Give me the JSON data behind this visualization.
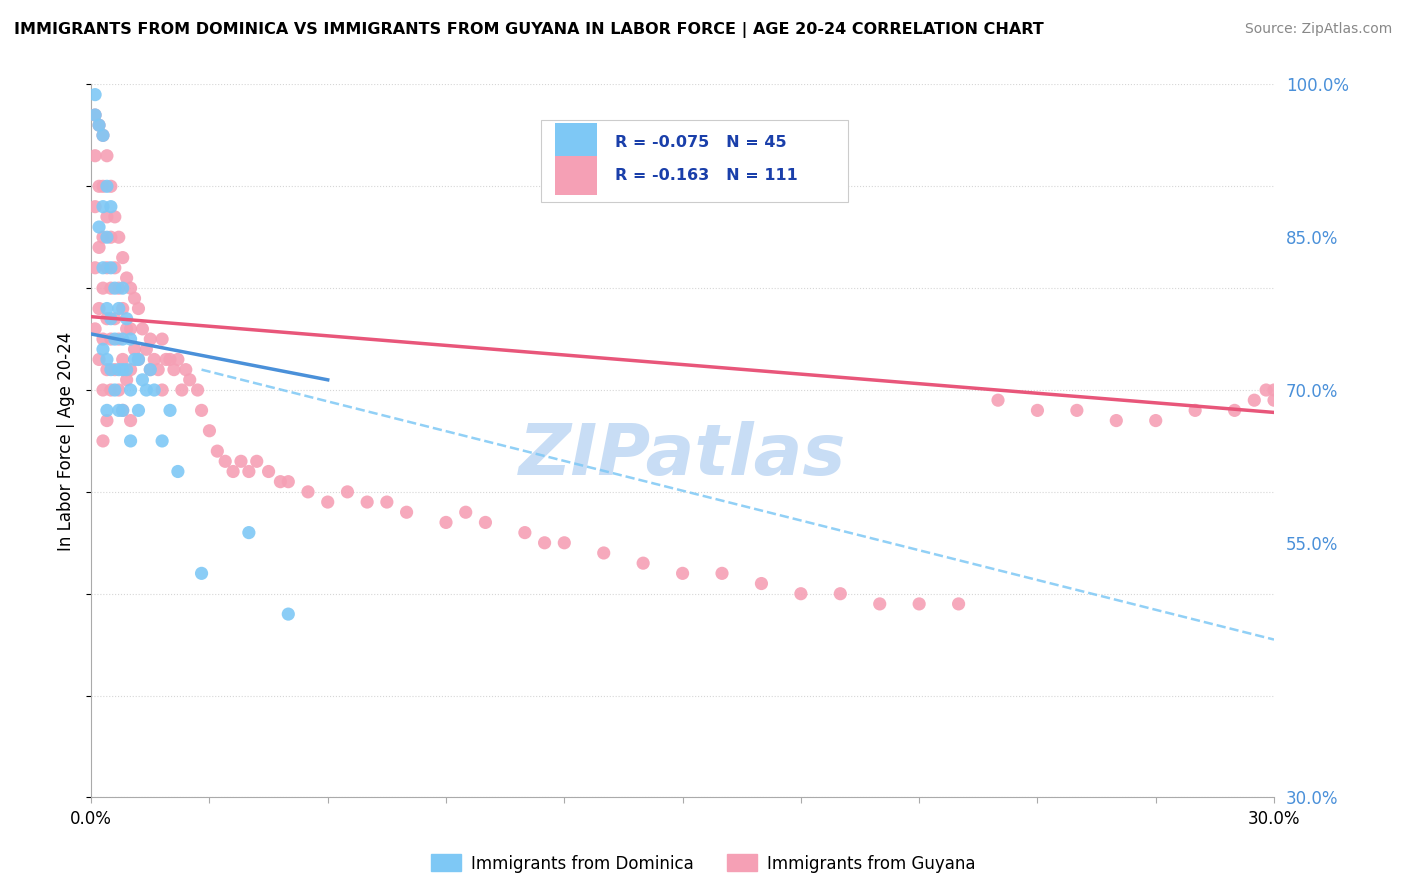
{
  "title": "IMMIGRANTS FROM DOMINICA VS IMMIGRANTS FROM GUYANA IN LABOR FORCE | AGE 20-24 CORRELATION CHART",
  "source": "Source: ZipAtlas.com",
  "ylabel": "In Labor Force | Age 20-24",
  "xlim": [
    0.0,
    0.3
  ],
  "ylim": [
    0.3,
    1.0
  ],
  "ytick_right_labels": [
    "100.0%",
    "85.0%",
    "70.0%",
    "55.0%",
    "30.0%"
  ],
  "ytick_right_pos": [
    1.0,
    0.85,
    0.7,
    0.55,
    0.3
  ],
  "dominica_color": "#7ec8f5",
  "guyana_color": "#f5a0b5",
  "dominica_line_color": "#4a90d9",
  "guyana_line_color": "#e8567a",
  "dashed_line_color": "#7ec8f5",
  "R_dominica": -0.075,
  "N_dominica": 45,
  "R_guyana": -0.163,
  "N_guyana": 111,
  "legend_R_color": "#1a3faa",
  "watermark": "ZIPatlas",
  "watermark_color": "#c8ddf5",
  "dominica_x": [
    0.001,
    0.001,
    0.002,
    0.002,
    0.003,
    0.003,
    0.003,
    0.003,
    0.004,
    0.004,
    0.004,
    0.004,
    0.004,
    0.005,
    0.005,
    0.005,
    0.005,
    0.006,
    0.006,
    0.006,
    0.007,
    0.007,
    0.007,
    0.008,
    0.008,
    0.008,
    0.008,
    0.009,
    0.009,
    0.01,
    0.01,
    0.01,
    0.011,
    0.012,
    0.012,
    0.013,
    0.014,
    0.015,
    0.016,
    0.018,
    0.02,
    0.022,
    0.028,
    0.04,
    0.05
  ],
  "dominica_y": [
    0.99,
    0.97,
    0.96,
    0.86,
    0.95,
    0.88,
    0.82,
    0.74,
    0.9,
    0.85,
    0.78,
    0.73,
    0.68,
    0.88,
    0.82,
    0.77,
    0.72,
    0.8,
    0.75,
    0.7,
    0.78,
    0.72,
    0.68,
    0.8,
    0.75,
    0.72,
    0.68,
    0.77,
    0.72,
    0.75,
    0.7,
    0.65,
    0.73,
    0.73,
    0.68,
    0.71,
    0.7,
    0.72,
    0.7,
    0.65,
    0.68,
    0.62,
    0.52,
    0.56,
    0.48
  ],
  "guyana_x": [
    0.001,
    0.001,
    0.001,
    0.001,
    0.001,
    0.002,
    0.002,
    0.002,
    0.002,
    0.002,
    0.003,
    0.003,
    0.003,
    0.003,
    0.003,
    0.003,
    0.003,
    0.004,
    0.004,
    0.004,
    0.004,
    0.004,
    0.004,
    0.005,
    0.005,
    0.005,
    0.005,
    0.005,
    0.006,
    0.006,
    0.006,
    0.006,
    0.007,
    0.007,
    0.007,
    0.007,
    0.008,
    0.008,
    0.008,
    0.008,
    0.009,
    0.009,
    0.009,
    0.01,
    0.01,
    0.01,
    0.01,
    0.011,
    0.011,
    0.012,
    0.012,
    0.013,
    0.014,
    0.015,
    0.015,
    0.016,
    0.017,
    0.018,
    0.018,
    0.019,
    0.02,
    0.021,
    0.022,
    0.023,
    0.024,
    0.025,
    0.027,
    0.028,
    0.03,
    0.032,
    0.034,
    0.036,
    0.038,
    0.04,
    0.042,
    0.045,
    0.048,
    0.05,
    0.055,
    0.06,
    0.065,
    0.07,
    0.075,
    0.08,
    0.09,
    0.095,
    0.1,
    0.11,
    0.115,
    0.12,
    0.13,
    0.14,
    0.15,
    0.16,
    0.17,
    0.18,
    0.19,
    0.2,
    0.21,
    0.22,
    0.23,
    0.24,
    0.25,
    0.26,
    0.27,
    0.28,
    0.29,
    0.295,
    0.298,
    0.3,
    0.3
  ],
  "guyana_y": [
    0.97,
    0.93,
    0.88,
    0.82,
    0.76,
    0.96,
    0.9,
    0.84,
    0.78,
    0.73,
    0.95,
    0.9,
    0.85,
    0.8,
    0.75,
    0.7,
    0.65,
    0.93,
    0.87,
    0.82,
    0.77,
    0.72,
    0.67,
    0.9,
    0.85,
    0.8,
    0.75,
    0.7,
    0.87,
    0.82,
    0.77,
    0.72,
    0.85,
    0.8,
    0.75,
    0.7,
    0.83,
    0.78,
    0.73,
    0.68,
    0.81,
    0.76,
    0.71,
    0.8,
    0.76,
    0.72,
    0.67,
    0.79,
    0.74,
    0.78,
    0.73,
    0.76,
    0.74,
    0.75,
    0.72,
    0.73,
    0.72,
    0.75,
    0.7,
    0.73,
    0.73,
    0.72,
    0.73,
    0.7,
    0.72,
    0.71,
    0.7,
    0.68,
    0.66,
    0.64,
    0.63,
    0.62,
    0.63,
    0.62,
    0.63,
    0.62,
    0.61,
    0.61,
    0.6,
    0.59,
    0.6,
    0.59,
    0.59,
    0.58,
    0.57,
    0.58,
    0.57,
    0.56,
    0.55,
    0.55,
    0.54,
    0.53,
    0.52,
    0.52,
    0.51,
    0.5,
    0.5,
    0.49,
    0.49,
    0.49,
    0.69,
    0.68,
    0.68,
    0.67,
    0.67,
    0.68,
    0.68,
    0.69,
    0.7,
    0.7,
    0.69
  ],
  "dominica_trend_x": [
    0.0,
    0.06
  ],
  "dominica_trend_y": [
    0.755,
    0.71
  ],
  "guyana_trend_x": [
    0.0,
    0.3
  ],
  "guyana_trend_y": [
    0.772,
    0.678
  ],
  "dashed_trend_x": [
    0.028,
    0.3
  ],
  "dashed_trend_y": [
    0.72,
    0.455
  ]
}
